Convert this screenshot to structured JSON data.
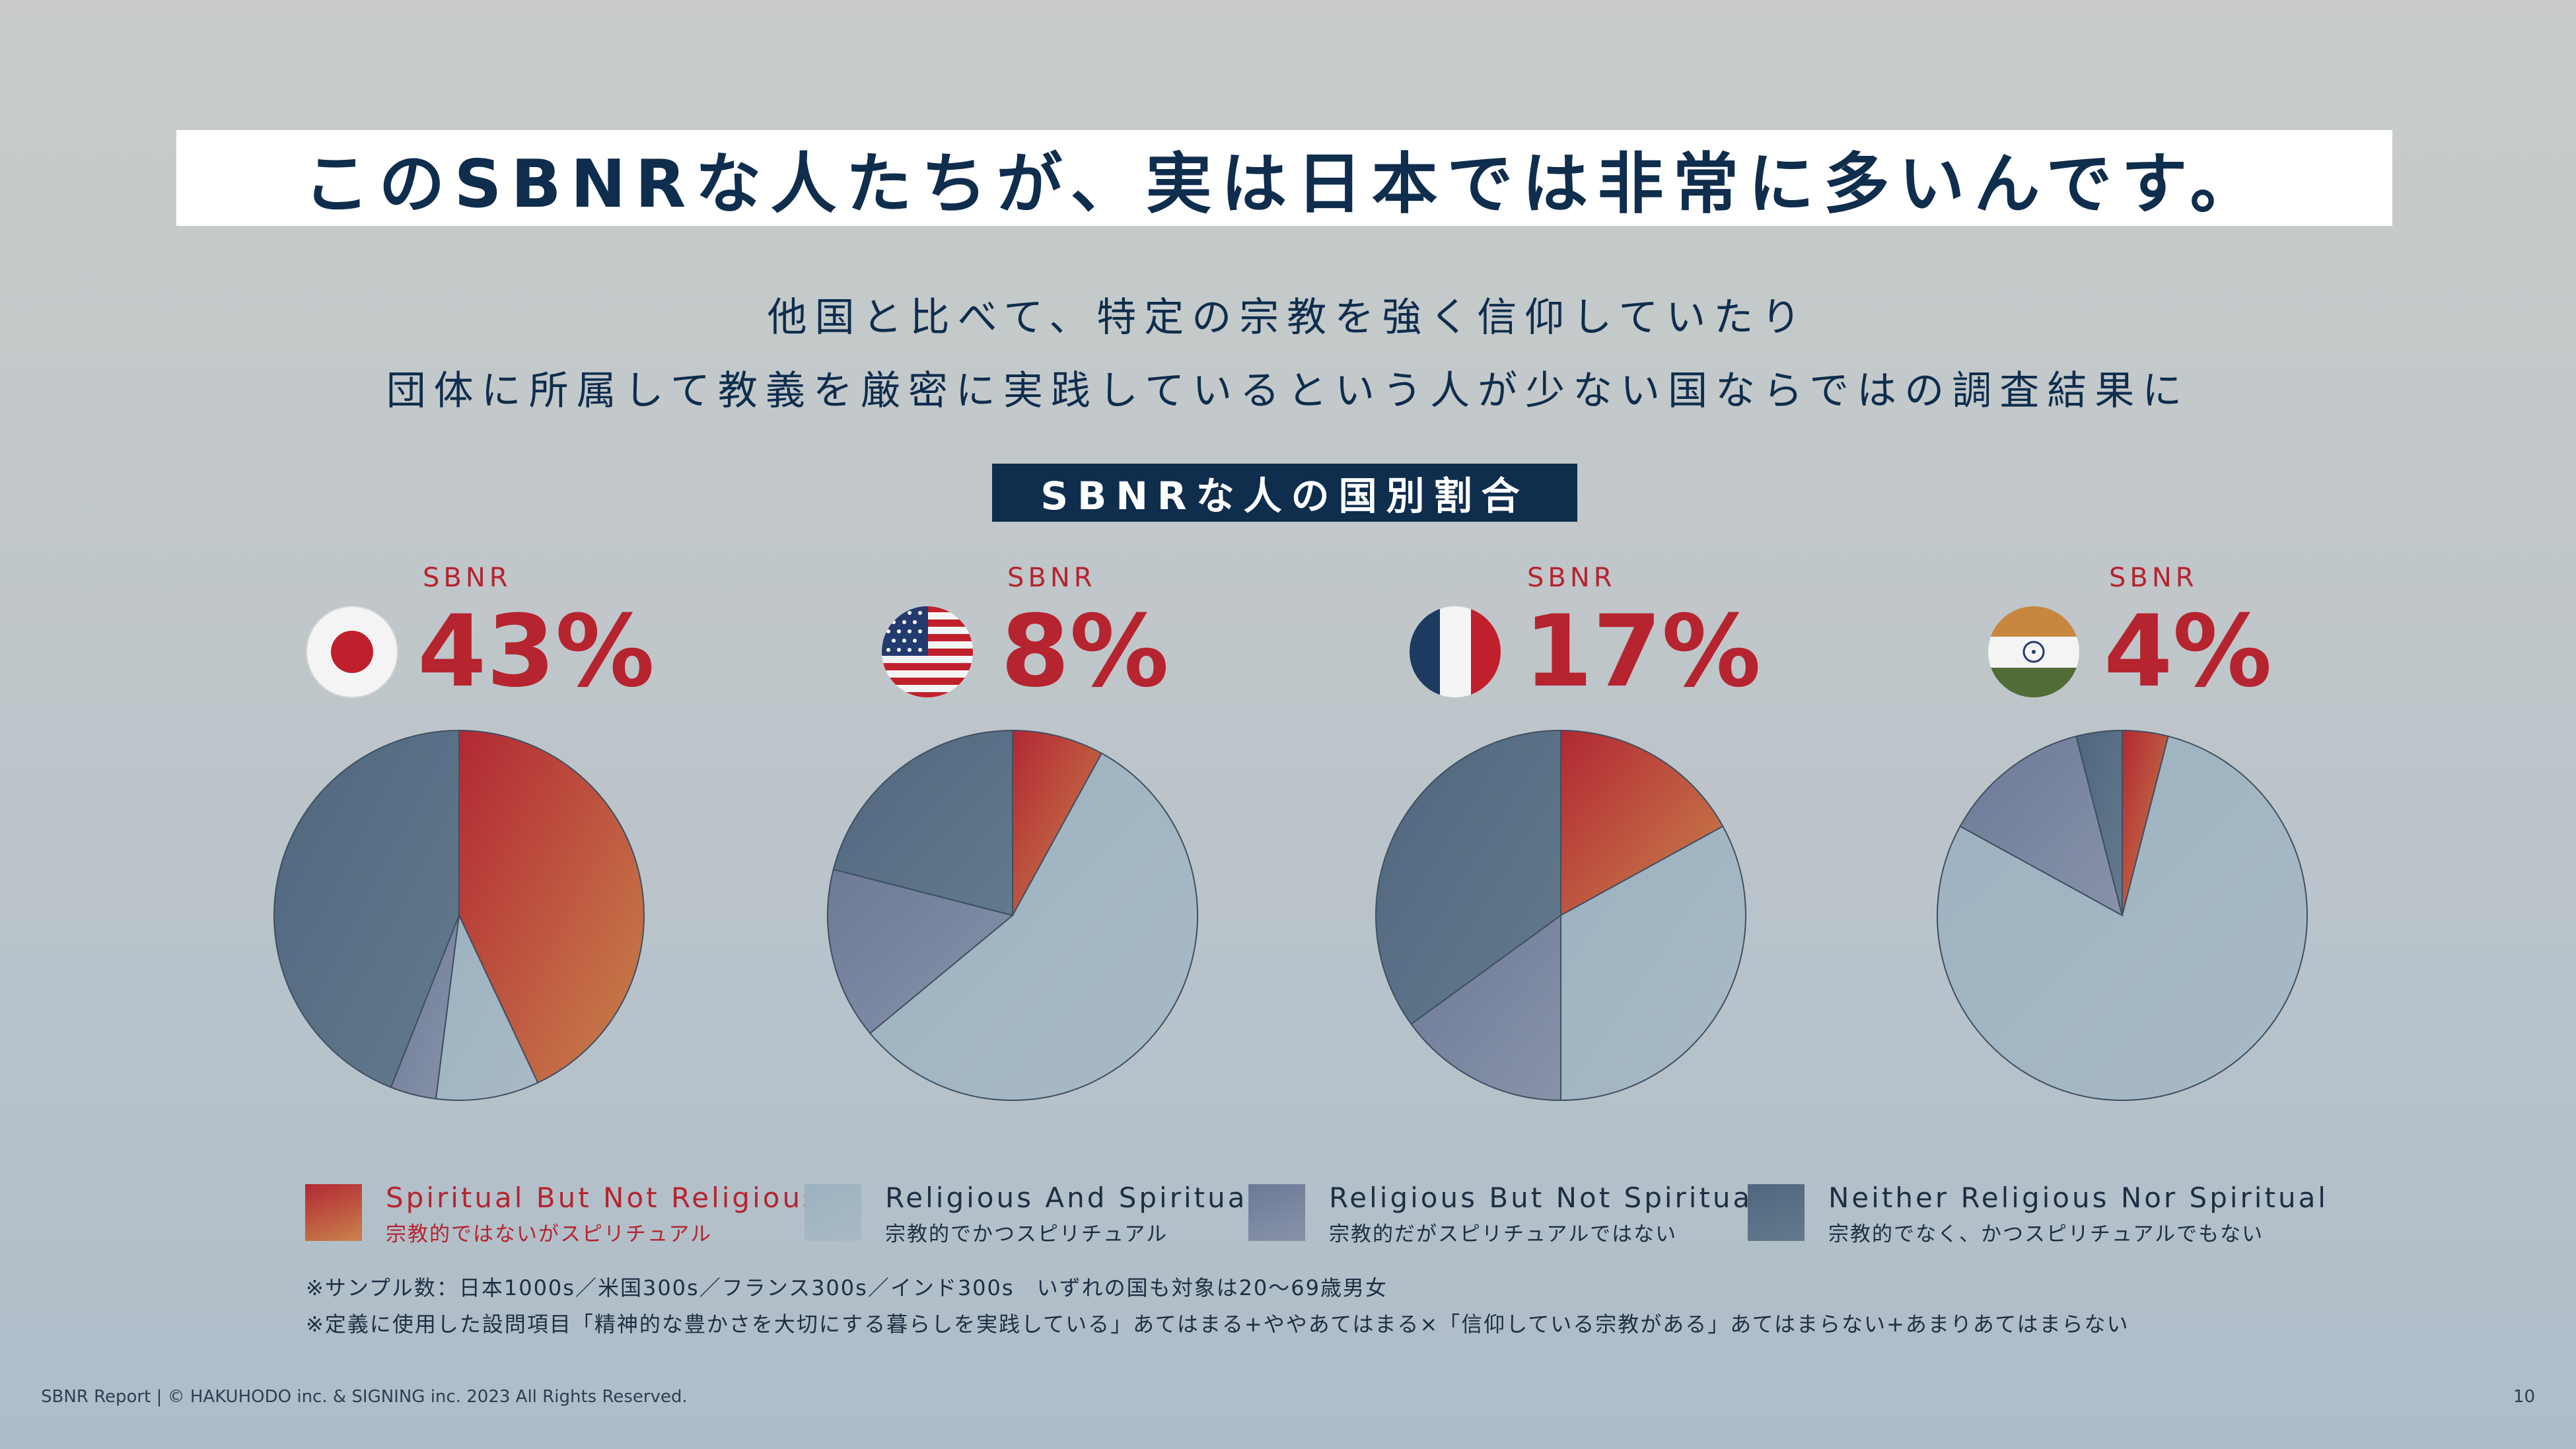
{
  "title": "このSBNRな人たちが、実は日本では非常に多いんです。",
  "subtitle_lines": [
    "他国と比べて、特定の宗教を強く信仰していたり",
    "団体に所属して教義を厳密に実践しているという人が少ない国ならではの調査結果に"
  ],
  "section_label": "SBNRな人の国別割合",
  "countries": [
    {
      "sbnr_label": "SBNR",
      "percent_label": "43%",
      "flag_icon": "japan-flag-icon"
    },
    {
      "sbnr_label": "SBNR",
      "percent_label": "8%",
      "flag_icon": "usa-flag-icon"
    },
    {
      "sbnr_label": "SBNR",
      "percent_label": "17%",
      "flag_icon": "france-flag-icon"
    },
    {
      "sbnr_label": "SBNR",
      "percent_label": "4%",
      "flag_icon": "india-flag-icon"
    }
  ],
  "chart_data": [
    {
      "type": "pie",
      "categories": [
        "Spiritual But Not Religious",
        "Religious And Spiritual",
        "Religious But Not Spiritual",
        "Neither Religious Nor Spiritual"
      ],
      "values": [
        43,
        9,
        4,
        44
      ]
    },
    {
      "type": "pie",
      "categories": [
        "Spiritual But Not Religious",
        "Religious And Spiritual",
        "Religious But Not Spiritual",
        "Neither Religious Nor Spiritual"
      ],
      "values": [
        8,
        56,
        15,
        21
      ]
    },
    {
      "type": "pie",
      "categories": [
        "Spiritual But Not Religious",
        "Religious And Spiritual",
        "Religious But Not Spiritual",
        "Neither Religious Nor Spiritual"
      ],
      "values": [
        17,
        33,
        15,
        35
      ]
    },
    {
      "type": "pie",
      "categories": [
        "Spiritual But Not Religious",
        "Religious And Spiritual",
        "Religious But Not Spiritual",
        "Neither Religious Nor Spiritual"
      ],
      "values": [
        4,
        79,
        13,
        4
      ]
    }
  ],
  "legend": [
    {
      "en": "Spiritual But Not Religious",
      "ja": "宗教的ではないがスピリチュアル",
      "color_from": "#b22833",
      "color_to": "#c9834c"
    },
    {
      "en": "Religious And Spiritual",
      "ja": "宗教的でかつスピリチュアル",
      "color_from": "#9cb1c0",
      "color_to": "#a9bac6"
    },
    {
      "en": "Religious But Not Spiritual",
      "ja": "宗教的だがスピリチュアルではない",
      "color_from": "#6d7a96",
      "color_to": "#8892aa"
    },
    {
      "en": "Neither Religious Nor Spiritual",
      "ja": "宗教的でなく、かつスピリチュアルでもない",
      "color_from": "#4f667d",
      "color_to": "#637a8e"
    }
  ],
  "notes": [
    "※サンプル数：日本1000s／米国300s／フランス300s／インド300s　いずれの国も対象は20～69歳男女",
    "※定義に使用した設問項目「精神的な豊かさを大切にする暮らしを実践している」あてはまる+ややあてはまる×「信仰している宗教がある」あてはまらない+あまりあてはまらない"
  ],
  "footer": {
    "copyright": "SBNR Report | © HAKUHODO inc. & SIGNING inc. 2023 All Rights Reserved.",
    "page_number": "10"
  }
}
